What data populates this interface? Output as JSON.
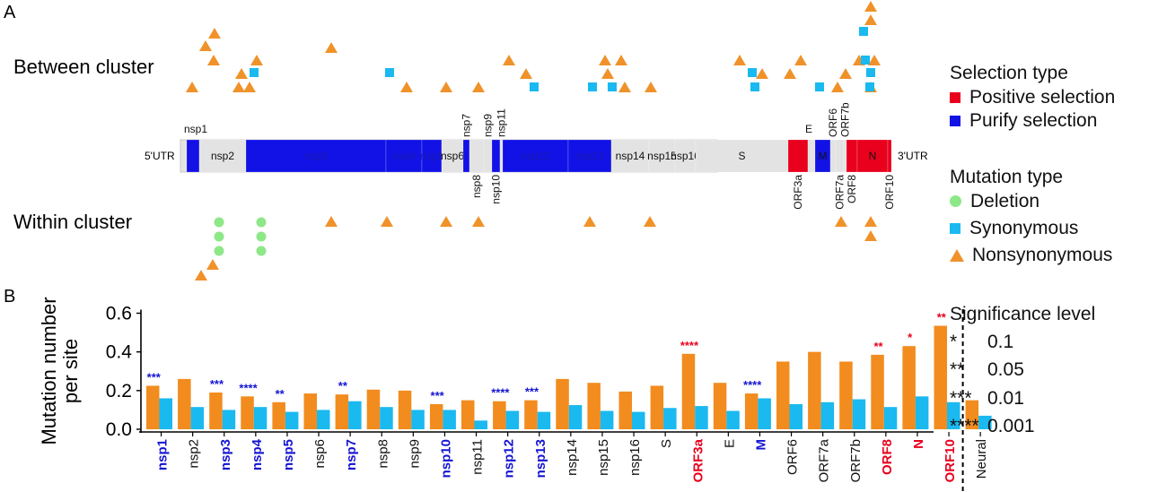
{
  "panels": {
    "a": "A",
    "b": "B"
  },
  "row_labels": {
    "between": "Between cluster",
    "within": "Within cluster"
  },
  "genome": {
    "utr5": "5'UTR",
    "utr3": "3'UTR",
    "colors": {
      "positive": "#e8001d",
      "purify": "#1212e6",
      "neutral": "#e3e3e3"
    },
    "segments": [
      {
        "name": "nsp1",
        "sel": "purify",
        "start": 208,
        "end": 222
      },
      {
        "name": "nsp2",
        "sel": "neutral",
        "start": 222,
        "end": 274
      },
      {
        "name": "nsp3",
        "sel": "purify",
        "start": 274,
        "end": 430
      },
      {
        "name": "nsp4",
        "sel": "purify",
        "start": 430,
        "end": 470
      },
      {
        "name": "nsp5",
        "sel": "purify",
        "start": 470,
        "end": 492
      },
      {
        "name": "nsp6",
        "sel": "neutral",
        "start": 492,
        "end": 516
      },
      {
        "name": "nsp7",
        "sel": "purify",
        "start": 516,
        "end": 523
      },
      {
        "name": "nsp8",
        "sel": "neutral",
        "start": 523,
        "end": 539
      },
      {
        "name": "nsp9",
        "sel": "neutral",
        "start": 539,
        "end": 548
      },
      {
        "name": "nsp10",
        "sel": "purify",
        "start": 548,
        "end": 557
      },
      {
        "name": "nsp11",
        "sel": "neutral",
        "start": 557,
        "end": 560
      },
      {
        "name": "nsp12",
        "sel": "purify",
        "start": 560,
        "end": 633
      },
      {
        "name": "nsp13",
        "sel": "purify",
        "start": 633,
        "end": 681
      },
      {
        "name": "nsp14",
        "sel": "neutral",
        "start": 681,
        "end": 723
      },
      {
        "name": "nsp15",
        "sel": "neutral",
        "start": 723,
        "end": 752
      },
      {
        "name": "nsp16",
        "sel": "neutral",
        "start": 752,
        "end": 775
      },
      {
        "name": "S",
        "sel": "neutral",
        "start": 775,
        "end": 878
      },
      {
        "name": "ORF3a",
        "sel": "positive",
        "start": 878,
        "end": 900
      },
      {
        "name": "E",
        "sel": "neutral",
        "start": 900,
        "end": 908
      },
      {
        "name": "M",
        "sel": "purify",
        "start": 908,
        "end": 925
      },
      {
        "name": "ORF6",
        "sel": "neutral",
        "start": 925,
        "end": 931
      },
      {
        "name": "ORF7a",
        "sel": "neutral",
        "start": 931,
        "end": 940
      },
      {
        "name": "ORF7b",
        "sel": "neutral",
        "start": 940,
        "end": 943
      },
      {
        "name": "ORF8",
        "sel": "positive",
        "start": 943,
        "end": 955
      },
      {
        "name": "N",
        "sel": "positive",
        "start": 955,
        "end": 989
      },
      {
        "name": "ORF10",
        "sel": "positive",
        "start": 989,
        "end": 993
      }
    ]
  },
  "selection_legend": {
    "title": "Selection type",
    "positive": "Positive selection",
    "purify": "Purify selection"
  },
  "mutation_legend": {
    "title": "Mutation type",
    "deletion": "Deletion",
    "synonymous": "Synonymous",
    "nonsynonymous": "Nonsynonymous"
  },
  "significance_legend": {
    "title": "Significance level",
    "rows": [
      {
        "symbol": "*",
        "value": "0.1"
      },
      {
        "symbol": "**",
        "value": "0.05"
      },
      {
        "symbol": "***",
        "value": "0.01"
      },
      {
        "symbol": "****",
        "value": "0.001"
      }
    ]
  },
  "chart_data": {
    "type": "bar",
    "ylabel_line1": "Mutation number",
    "ylabel_line2": "per site",
    "ylim": [
      0,
      0.6
    ],
    "yticks": [
      "0.0",
      "0.2",
      "0.4",
      "0.6"
    ],
    "colors": {
      "series1": "#f28c1e",
      "series2": "#1ab9f0",
      "sig_blue": "#1414d2",
      "sig_red": "#e8001d",
      "label_default": "#111111"
    },
    "categories": [
      {
        "name": "nsp1",
        "a": 0.225,
        "b": 0.16,
        "sig": "***",
        "c": "blue"
      },
      {
        "name": "nsp2",
        "a": 0.26,
        "b": 0.115,
        "sig": "",
        "c": ""
      },
      {
        "name": "nsp3",
        "a": 0.19,
        "b": 0.1,
        "sig": "***",
        "c": "blue"
      },
      {
        "name": "nsp4",
        "a": 0.17,
        "b": 0.115,
        "sig": "****",
        "c": "blue"
      },
      {
        "name": "nsp5",
        "a": 0.14,
        "b": 0.09,
        "sig": "**",
        "c": "blue"
      },
      {
        "name": "nsp6",
        "a": 0.185,
        "b": 0.1,
        "sig": "",
        "c": ""
      },
      {
        "name": "nsp7",
        "a": 0.18,
        "b": 0.145,
        "sig": "**",
        "c": "blue"
      },
      {
        "name": "nsp8",
        "a": 0.205,
        "b": 0.115,
        "sig": "",
        "c": ""
      },
      {
        "name": "nsp9",
        "a": 0.2,
        "b": 0.1,
        "sig": "",
        "c": ""
      },
      {
        "name": "nsp10",
        "a": 0.13,
        "b": 0.1,
        "sig": "***",
        "c": "blue"
      },
      {
        "name": "nsp11",
        "a": 0.15,
        "b": 0.045,
        "sig": "",
        "c": ""
      },
      {
        "name": "nsp12",
        "a": 0.145,
        "b": 0.095,
        "sig": "****",
        "c": "blue"
      },
      {
        "name": "nsp13",
        "a": 0.15,
        "b": 0.09,
        "sig": "***",
        "c": "blue"
      },
      {
        "name": "nsp14",
        "a": 0.26,
        "b": 0.125,
        "sig": "",
        "c": ""
      },
      {
        "name": "nsp15",
        "a": 0.24,
        "b": 0.095,
        "sig": "",
        "c": ""
      },
      {
        "name": "nsp16",
        "a": 0.195,
        "b": 0.09,
        "sig": "",
        "c": ""
      },
      {
        "name": "S",
        "a": 0.225,
        "b": 0.11,
        "sig": "",
        "c": ""
      },
      {
        "name": "ORF3a",
        "a": 0.39,
        "b": 0.12,
        "sig": "****",
        "c": "red"
      },
      {
        "name": "E",
        "a": 0.24,
        "b": 0.095,
        "sig": "",
        "c": ""
      },
      {
        "name": "M",
        "a": 0.185,
        "b": 0.16,
        "sig": "****",
        "c": "blue"
      },
      {
        "name": "ORF6",
        "a": 0.35,
        "b": 0.13,
        "sig": "",
        "c": ""
      },
      {
        "name": "ORF7a",
        "a": 0.4,
        "b": 0.14,
        "sig": "",
        "c": ""
      },
      {
        "name": "ORF7b",
        "a": 0.35,
        "b": 0.155,
        "sig": "",
        "c": ""
      },
      {
        "name": "ORF8",
        "a": 0.385,
        "b": 0.115,
        "sig": "**",
        "c": "red"
      },
      {
        "name": "N",
        "a": 0.43,
        "b": 0.17,
        "sig": "*",
        "c": "red"
      },
      {
        "name": "ORF10",
        "a": 0.535,
        "b": 0.14,
        "sig": "**",
        "c": "red"
      },
      {
        "name": "Neural",
        "a": 0.15,
        "b": 0.07,
        "sig": "",
        "c": ""
      }
    ]
  },
  "mutations": {
    "colors": {
      "nonsynonymous": "#f0922a",
      "synonymous": "#1ab9f0",
      "deletion": "#8ee888"
    },
    "between": {
      "nonsynonymous": [
        [
          214,
          97
        ],
        [
          229,
          51
        ],
        [
          239,
          37
        ],
        [
          238,
          67
        ],
        [
          269,
          82
        ],
        [
          266,
          97
        ],
        [
          278,
          97
        ],
        [
          286,
          67
        ],
        [
          369,
          53
        ],
        [
          453,
          97
        ],
        [
          497,
          97
        ],
        [
          533,
          97
        ],
        [
          567,
          67
        ],
        [
          586,
          82
        ],
        [
          674,
          67
        ],
        [
          677,
          82
        ],
        [
          692,
          67
        ],
        [
          696,
          97
        ],
        [
          725,
          97
        ],
        [
          824,
          67
        ],
        [
          849,
          82
        ],
        [
          880,
          82
        ],
        [
          892,
          67
        ],
        [
          933,
          97
        ],
        [
          942,
          82
        ],
        [
          957,
          67
        ],
        [
          970,
          97
        ],
        [
          970,
          7
        ],
        [
          970,
          22
        ],
        [
          974,
          67
        ]
      ],
      "synonymous": [
        [
          283,
          81
        ],
        [
          434,
          81
        ],
        [
          595,
          97
        ],
        [
          660,
          97
        ],
        [
          682,
          97
        ],
        [
          838,
          81
        ],
        [
          841,
          97
        ],
        [
          913,
          97
        ],
        [
          962,
          35
        ],
        [
          964,
          67
        ],
        [
          970,
          81
        ],
        [
          969,
          97
        ]
      ]
    },
    "within": {
      "nonsynonymous": [
        [
          224,
          307
        ],
        [
          237,
          295
        ],
        [
          369,
          247
        ],
        [
          431,
          247
        ],
        [
          497,
          247
        ],
        [
          533,
          247
        ],
        [
          657,
          247
        ],
        [
          724,
          247
        ],
        [
          937,
          247
        ],
        [
          970,
          247
        ],
        [
          970,
          263
        ]
      ],
      "deletion": [
        [
          244,
          248
        ],
        [
          244,
          264
        ],
        [
          244,
          280
        ],
        [
          291,
          248
        ],
        [
          291,
          264
        ],
        [
          291,
          280
        ]
      ]
    }
  }
}
